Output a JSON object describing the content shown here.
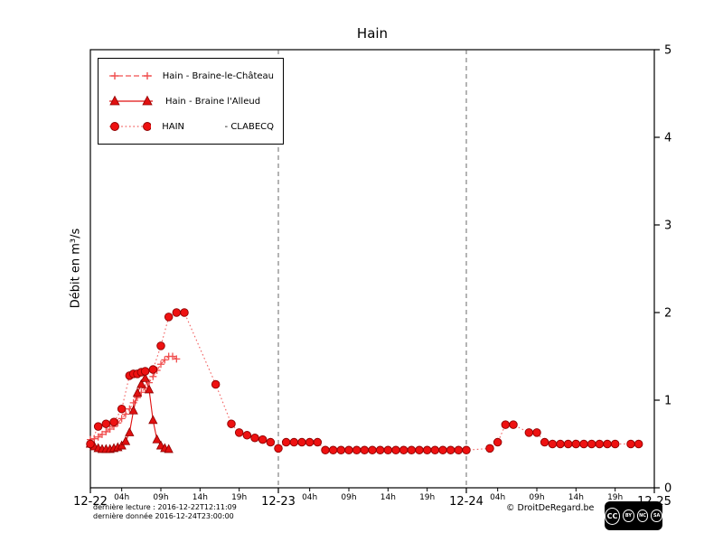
{
  "footer": {
    "line1": "dernière lecture : 2016-12-22T12:11:09",
    "line2": "dernière donnée  2016-12-24T23:00:00",
    "copyright": "© DroitDeRegard.be",
    "cc_icons": [
      "CC",
      "BY",
      "NC",
      "SA"
    ]
  },
  "chart_data": {
    "type": "line",
    "title": "Hain",
    "xlabel": "",
    "ylabel": "Débit en m³/s",
    "x_unit": "hours since 2016-12-22 00:00",
    "x_range": [
      0,
      72
    ],
    "y_range": [
      0,
      5
    ],
    "y_ticks": [
      0,
      1,
      2,
      3,
      4,
      5
    ],
    "gridlines_x": [
      24,
      48
    ],
    "grid": "vertical-dashed-at-days",
    "legend_position": "upper-left",
    "x_major_ticks": [
      {
        "t": 0,
        "label": "12-22"
      },
      {
        "t": 24,
        "label": "12-23"
      },
      {
        "t": 48,
        "label": "12-24"
      },
      {
        "t": 72,
        "label": "12-25"
      }
    ],
    "x_minor_ticks": [
      {
        "t": 4,
        "label": "04h"
      },
      {
        "t": 9,
        "label": "09h"
      },
      {
        "t": 14,
        "label": "14h"
      },
      {
        "t": 19,
        "label": "19h"
      },
      {
        "t": 28,
        "label": "04h"
      },
      {
        "t": 33,
        "label": "09h"
      },
      {
        "t": 38,
        "label": "14h"
      },
      {
        "t": 43,
        "label": "19h"
      },
      {
        "t": 52,
        "label": "04h"
      },
      {
        "t": 57,
        "label": "09h"
      },
      {
        "t": 62,
        "label": "14h"
      },
      {
        "t": 67,
        "label": "19h"
      }
    ],
    "series": [
      {
        "label": "Hain - Braine-le-Château",
        "marker": "plus",
        "line": "dashed",
        "color": "#f05050",
        "line_color": "#f05050",
        "edge": "#f05050",
        "points": [
          [
            0,
            0.55
          ],
          [
            0.5,
            0.56
          ],
          [
            1,
            0.58
          ],
          [
            1.5,
            0.61
          ],
          [
            2,
            0.64
          ],
          [
            2.5,
            0.67
          ],
          [
            3,
            0.7
          ],
          [
            3.5,
            0.74
          ],
          [
            4,
            0.79
          ],
          [
            4.5,
            0.84
          ],
          [
            5,
            0.9
          ],
          [
            5.5,
            0.97
          ],
          [
            6,
            1.03
          ],
          [
            6.5,
            1.09
          ],
          [
            7,
            1.14
          ],
          [
            7.5,
            1.2
          ],
          [
            8,
            1.27
          ],
          [
            8.5,
            1.34
          ],
          [
            9,
            1.41
          ],
          [
            9.5,
            1.46
          ],
          [
            10,
            1.5
          ],
          [
            10.5,
            1.5
          ],
          [
            11,
            1.47
          ]
        ]
      },
      {
        "label": "Hain - Braine l'Alleud",
        "marker": "triangle",
        "line": "solid",
        "color": "#e01010",
        "line_color": "#e01010",
        "edge": "#8f0000",
        "points": [
          [
            0,
            0.5
          ],
          [
            0.5,
            0.47
          ],
          [
            1,
            0.45
          ],
          [
            1.5,
            0.44
          ],
          [
            2,
            0.44
          ],
          [
            2.5,
            0.44
          ],
          [
            3,
            0.45
          ],
          [
            3.5,
            0.46
          ],
          [
            4,
            0.48
          ],
          [
            4.5,
            0.53
          ],
          [
            5,
            0.63
          ],
          [
            5.5,
            0.88
          ],
          [
            6,
            1.08
          ],
          [
            6.5,
            1.18
          ],
          [
            7,
            1.25
          ],
          [
            7.5,
            1.12
          ],
          [
            8,
            0.77
          ],
          [
            8.5,
            0.55
          ],
          [
            9,
            0.48
          ],
          [
            9.5,
            0.45
          ],
          [
            10,
            0.44
          ]
        ]
      },
      {
        "label": "HAIN              - CLABECQ",
        "marker": "circle",
        "line": "dotted",
        "color": "#ee1111",
        "line_color": "#f26060",
        "edge": "#8f0000",
        "points": [
          [
            0,
            0.5
          ],
          [
            1,
            0.7
          ],
          [
            2,
            0.73
          ],
          [
            3,
            0.75
          ],
          [
            4,
            0.9
          ],
          [
            5,
            1.28
          ],
          [
            5.5,
            1.3
          ],
          [
            6,
            1.3
          ],
          [
            6.5,
            1.32
          ],
          [
            7,
            1.33
          ],
          [
            8,
            1.35
          ],
          [
            9,
            1.62
          ],
          [
            10,
            1.95
          ],
          [
            11,
            2.0
          ],
          [
            12,
            2.0
          ],
          [
            16,
            1.18
          ],
          [
            18,
            0.73
          ],
          [
            19,
            0.63
          ],
          [
            20,
            0.6
          ],
          [
            21,
            0.57
          ],
          [
            22,
            0.55
          ],
          [
            23,
            0.52
          ],
          [
            24,
            0.45
          ],
          [
            25,
            0.52
          ],
          [
            26,
            0.52
          ],
          [
            27,
            0.52
          ],
          [
            28,
            0.52
          ],
          [
            29,
            0.52
          ],
          [
            30,
            0.43
          ],
          [
            31,
            0.43
          ],
          [
            32,
            0.43
          ],
          [
            33,
            0.43
          ],
          [
            34,
            0.43
          ],
          [
            35,
            0.43
          ],
          [
            36,
            0.43
          ],
          [
            37,
            0.43
          ],
          [
            38,
            0.43
          ],
          [
            39,
            0.43
          ],
          [
            40,
            0.43
          ],
          [
            41,
            0.43
          ],
          [
            42,
            0.43
          ],
          [
            43,
            0.43
          ],
          [
            44,
            0.43
          ],
          [
            45,
            0.43
          ],
          [
            46,
            0.43
          ],
          [
            47,
            0.43
          ],
          [
            48,
            0.43
          ],
          [
            51,
            0.45
          ],
          [
            52,
            0.52
          ],
          [
            53,
            0.72
          ],
          [
            54,
            0.72
          ],
          [
            56,
            0.63
          ],
          [
            57,
            0.63
          ],
          [
            58,
            0.52
          ],
          [
            59,
            0.5
          ],
          [
            60,
            0.5
          ],
          [
            61,
            0.5
          ],
          [
            62,
            0.5
          ],
          [
            63,
            0.5
          ],
          [
            64,
            0.5
          ],
          [
            65,
            0.5
          ],
          [
            66,
            0.5
          ],
          [
            67,
            0.5
          ],
          [
            69,
            0.5
          ],
          [
            70,
            0.5
          ]
        ]
      }
    ]
  }
}
